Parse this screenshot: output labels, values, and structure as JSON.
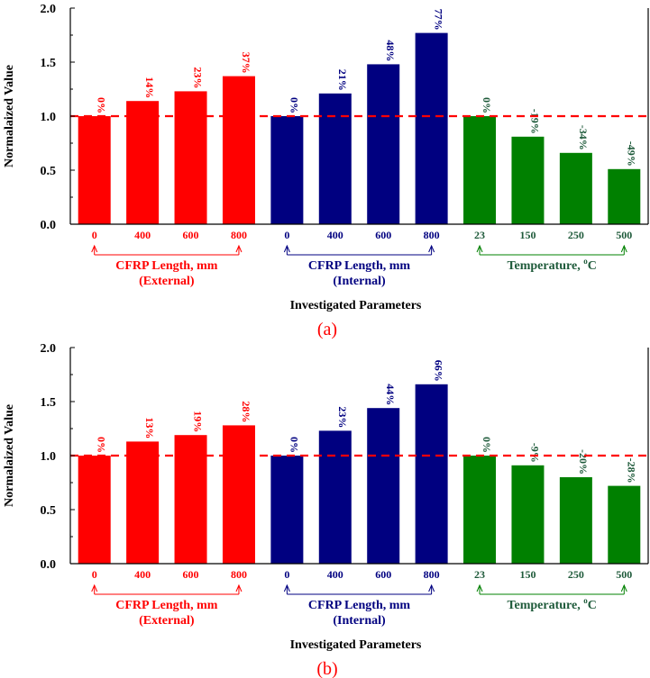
{
  "colors": {
    "external": "#ff0000",
    "internal": "#000080",
    "temperature": "#008000",
    "temperature_text": "#1e5a3a",
    "refline": "#ff0000",
    "axis": "#000000"
  },
  "chart_data": [
    {
      "type": "bar",
      "title": "",
      "panel_label": "(a)",
      "ylabel": "Normalaized Value",
      "xlabel": "Investigated Parameters",
      "ylim": [
        0,
        2.0
      ],
      "yticks": [
        "0.0",
        "0.5",
        "1.0",
        "1.5",
        "2.0"
      ],
      "reference_line": 1.0,
      "groups": [
        {
          "name": "CFRP Length, mm",
          "sub": "(External)",
          "color_key": "external",
          "categories": [
            "0",
            "400",
            "600",
            "800"
          ],
          "values": [
            1.0,
            1.14,
            1.23,
            1.37
          ],
          "labels": [
            "0%",
            "14%",
            "23%",
            "37%"
          ]
        },
        {
          "name": "CFRP Length, mm",
          "sub": "(Internal)",
          "color_key": "internal",
          "categories": [
            "0",
            "400",
            "600",
            "800"
          ],
          "values": [
            1.0,
            1.21,
            1.48,
            1.77
          ],
          "labels": [
            "0%",
            "21%",
            "48%",
            "77%"
          ]
        },
        {
          "name": "Temperature, ",
          "unit_sup": "o",
          "unit": "C",
          "sub": "",
          "color_key": "temperature",
          "categories": [
            "23",
            "150",
            "250",
            "500"
          ],
          "values": [
            1.0,
            0.81,
            0.66,
            0.51
          ],
          "labels": [
            "0%",
            "-19%",
            "-34%",
            "-49%"
          ]
        }
      ]
    },
    {
      "type": "bar",
      "title": "",
      "panel_label": "(b)",
      "ylabel": "Normalaized Value",
      "xlabel": "Investigated Parameters",
      "ylim": [
        0,
        2.0
      ],
      "yticks": [
        "0.0",
        "0.5",
        "1.0",
        "1.5",
        "2.0"
      ],
      "reference_line": 1.0,
      "groups": [
        {
          "name": "CFRP Length, mm",
          "sub": "(External)",
          "color_key": "external",
          "categories": [
            "0",
            "400",
            "600",
            "800"
          ],
          "values": [
            1.0,
            1.13,
            1.19,
            1.28
          ],
          "labels": [
            "0%",
            "13%",
            "19%",
            "28%"
          ]
        },
        {
          "name": "CFRP Length, mm",
          "sub": "(Internal)",
          "color_key": "internal",
          "categories": [
            "0",
            "400",
            "600",
            "800"
          ],
          "values": [
            1.0,
            1.23,
            1.44,
            1.66
          ],
          "labels": [
            "0%",
            "23%",
            "44%",
            "66%"
          ]
        },
        {
          "name": "Temperature, ",
          "unit_sup": "o",
          "unit": "C",
          "sub": "",
          "color_key": "temperature",
          "categories": [
            "23",
            "150",
            "250",
            "500"
          ],
          "values": [
            1.0,
            0.91,
            0.8,
            0.72
          ],
          "labels": [
            "0%",
            "-9%",
            "-20%",
            "-28%"
          ]
        }
      ]
    }
  ]
}
